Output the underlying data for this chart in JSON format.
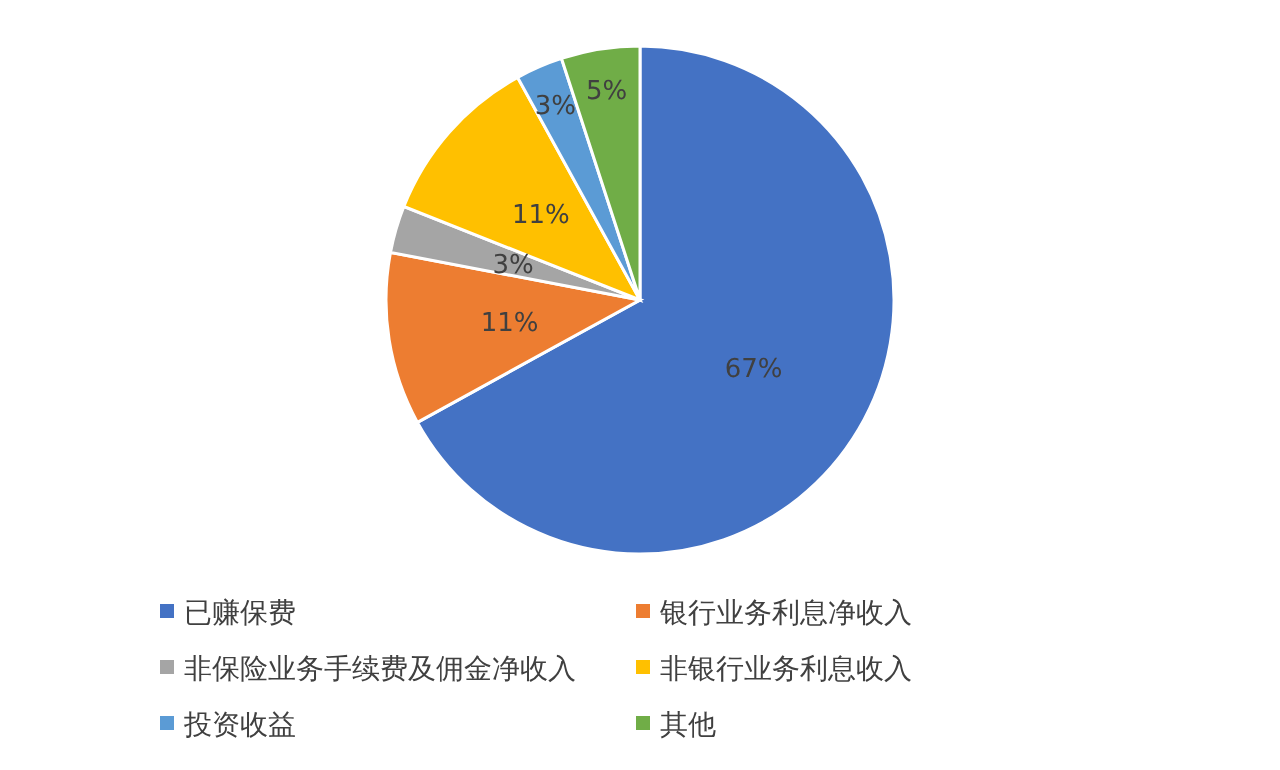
{
  "chart_data": {
    "type": "pie",
    "categories": [
      "已赚保费",
      "银行业务利息净收入",
      "非保险业务手续费及佣金净收入",
      "非银行业务利息收入",
      "投资收益",
      "其他"
    ],
    "values": [
      67,
      11,
      3,
      11,
      3,
      5
    ],
    "colors": [
      "#4472c4",
      "#ed7d31",
      "#a5a5a5",
      "#ffc000",
      "#5b9bd5",
      "#70ad47"
    ],
    "value_labels": [
      "67%",
      "11%",
      "3%",
      "11%",
      "3%",
      "5%"
    ],
    "legend": "bottom"
  }
}
